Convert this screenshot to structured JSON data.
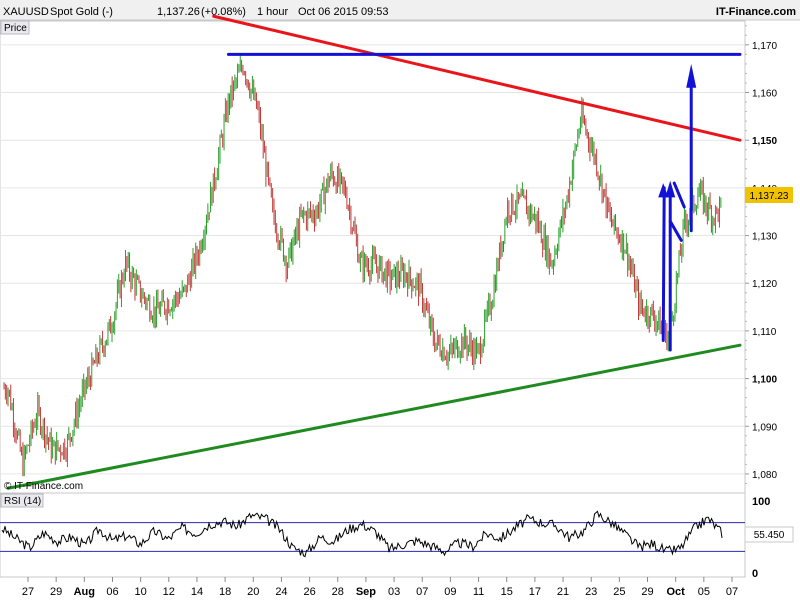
{
  "header": {
    "symbol": "XAUUSD",
    "instrument": "Spot Gold (-)",
    "price": "1,137.26",
    "change": "(+0.08%)",
    "interval": "1 hour",
    "timestamp": "Oct 06 2015 09:53",
    "brand": "IT-Finance.com"
  },
  "price_panel": {
    "label": "Price",
    "watermark": "© IT-Finance.com",
    "current_label": "1,137.23",
    "y_ticks": [
      "1,080",
      "1,090",
      "1,100",
      "1,110",
      "1,120",
      "1,130",
      "1,140",
      "1,150",
      "1,160",
      "1,170"
    ],
    "y_bold_ticks": [
      "1,100",
      "1,150"
    ]
  },
  "rsi_panel": {
    "label": "RSI (14)",
    "current_label": "55.450",
    "y_ticks": [
      "0",
      "100"
    ]
  },
  "x_axis": {
    "labels": [
      "27",
      "29",
      "Aug",
      "06",
      "10",
      "12",
      "14",
      "18",
      "20",
      "24",
      "26",
      "28",
      "Sep",
      "03",
      "07",
      "09",
      "11",
      "15",
      "17",
      "21",
      "23",
      "25",
      "29",
      "Oct",
      "05",
      "07"
    ],
    "bold_labels": [
      "Aug",
      "Sep",
      "Oct"
    ]
  },
  "colors": {
    "up_candle": "#2ca02c",
    "down_candle": "#c23b3b",
    "resistance_line": "#e8161b",
    "support_line": "#1f8a1f",
    "drawing_blue": "#1212d6",
    "rsi_line": "#000000",
    "rsi_band": "#2a2ab8"
  },
  "chart_data": {
    "type": "candlestick",
    "title": "XAUUSD - Spot Gold (-)",
    "interval": "1 hour",
    "ylim": [
      1076,
      1175
    ],
    "y_ticks": [
      1080,
      1090,
      1100,
      1110,
      1120,
      1130,
      1140,
      1150,
      1160,
      1170
    ],
    "last_price": 1137.23,
    "price_path": [
      {
        "date": "Jul 24",
        "close": 1098
      },
      {
        "date": "Jul 27",
        "close": 1082
      },
      {
        "date": "Jul 29",
        "close": 1093
      },
      {
        "date": "Aug 03",
        "close": 1085
      },
      {
        "date": "Aug 06",
        "close": 1086
      },
      {
        "date": "Aug 07",
        "close": 1096
      },
      {
        "date": "Aug 10",
        "close": 1104
      },
      {
        "date": "Aug 11",
        "close": 1111
      },
      {
        "date": "Aug 12",
        "close": 1124
      },
      {
        "date": "Aug 13",
        "close": 1118
      },
      {
        "date": "Aug 14",
        "close": 1114
      },
      {
        "date": "Aug 17",
        "close": 1116
      },
      {
        "date": "Aug 18",
        "close": 1118
      },
      {
        "date": "Aug 19",
        "close": 1127
      },
      {
        "date": "Aug 20",
        "close": 1141
      },
      {
        "date": "Aug 21",
        "close": 1158
      },
      {
        "date": "Aug 24",
        "close": 1166
      },
      {
        "date": "Aug 25",
        "close": 1156
      },
      {
        "date": "Aug 26",
        "close": 1135
      },
      {
        "date": "Aug 27",
        "close": 1124
      },
      {
        "date": "Aug 28",
        "close": 1134
      },
      {
        "date": "Aug 31",
        "close": 1135
      },
      {
        "date": "Sep 01",
        "close": 1143
      },
      {
        "date": "Sep 02",
        "close": 1139
      },
      {
        "date": "Sep 03",
        "close": 1124
      },
      {
        "date": "Sep 04",
        "close": 1124
      },
      {
        "date": "Sep 07",
        "close": 1121
      },
      {
        "date": "Sep 08",
        "close": 1122
      },
      {
        "date": "Sep 09",
        "close": 1119
      },
      {
        "date": "Sep 10",
        "close": 1108
      },
      {
        "date": "Sep 11",
        "close": 1105
      },
      {
        "date": "Sep 14",
        "close": 1108
      },
      {
        "date": "Sep 15",
        "close": 1105
      },
      {
        "date": "Sep 16",
        "close": 1118
      },
      {
        "date": "Sep 17",
        "close": 1136
      },
      {
        "date": "Sep 18",
        "close": 1137
      },
      {
        "date": "Sep 21",
        "close": 1133
      },
      {
        "date": "Sep 22",
        "close": 1124
      },
      {
        "date": "Sep 23",
        "close": 1137
      },
      {
        "date": "Sep 24",
        "close": 1155
      },
      {
        "date": "Sep 25",
        "close": 1146
      },
      {
        "date": "Sep 28",
        "close": 1133
      },
      {
        "date": "Sep 29",
        "close": 1128
      },
      {
        "date": "Sep 30",
        "close": 1115
      },
      {
        "date": "Oct 01",
        "close": 1113
      },
      {
        "date": "Oct 02",
        "close": 1108
      },
      {
        "date": "Oct 02",
        "close": 1132
      },
      {
        "date": "Oct 05",
        "close": 1139
      },
      {
        "date": "Oct 05",
        "close": 1134
      },
      {
        "date": "Oct 06",
        "close": 1137.23
      }
    ],
    "trendlines": [
      {
        "name": "resistance",
        "color": "red",
        "from": {
          "date": "Aug 20",
          "value": 1176
        },
        "to": {
          "date": "Oct 07",
          "value": 1150
        }
      },
      {
        "name": "support",
        "color": "green",
        "from": {
          "date": "Jul 24",
          "value": 1077
        },
        "to": {
          "date": "Oct 07",
          "value": 1107
        }
      },
      {
        "name": "horizontal",
        "color": "blue",
        "from": {
          "date": "Aug 21",
          "value": 1168
        },
        "to": {
          "date": "Oct 07",
          "value": 1168
        }
      }
    ],
    "rsi": {
      "period": 14,
      "ylim": [
        0,
        100
      ],
      "bands": [
        70,
        30
      ],
      "last_value": 55.45,
      "values": [
        62,
        48,
        35,
        56,
        44,
        50,
        38,
        61,
        45,
        52,
        40,
        58,
        47,
        63,
        55,
        68,
        72,
        65,
        80,
        76,
        62,
        35,
        28,
        50,
        44,
        61,
        68,
        57,
        33,
        40,
        45,
        38,
        30,
        42,
        37,
        55,
        48,
        62,
        75,
        70,
        66,
        49,
        58,
        82,
        70,
        54,
        36,
        41,
        30,
        34,
        62,
        76,
        55.45
      ]
    }
  }
}
